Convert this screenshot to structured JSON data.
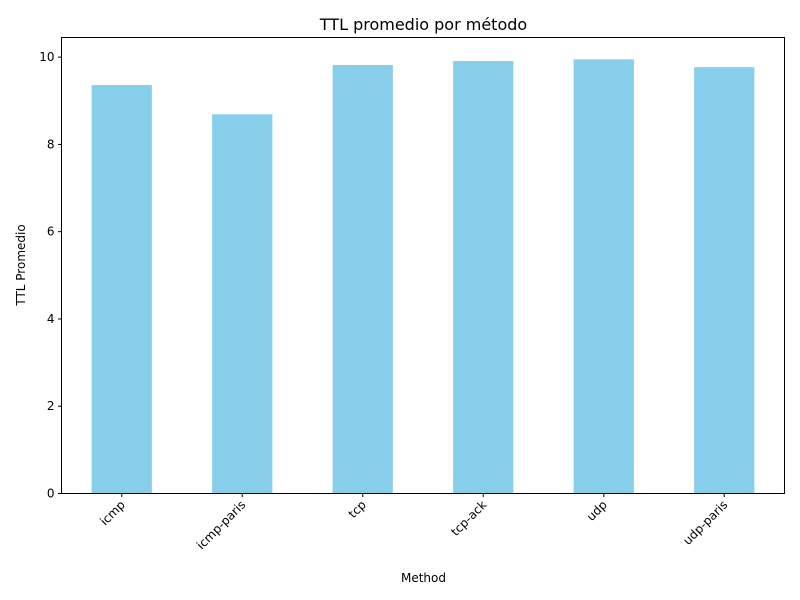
{
  "chart_data": {
    "type": "bar",
    "title": "TTL promedio por método",
    "xlabel": "Method",
    "ylabel": "TTL Promedio",
    "categories": [
      "icmp",
      "icmp-paris",
      "tcp",
      "tcp-ack",
      "udp",
      "udp-paris"
    ],
    "values": [
      9.36,
      8.69,
      9.82,
      9.91,
      9.95,
      9.77
    ],
    "ylim": [
      0,
      10.45
    ],
    "yticks": [
      0,
      2,
      4,
      6,
      8,
      10
    ],
    "bar_color": "#87ceeb",
    "grid": false,
    "x_tick_rotation": "45 degrees",
    "legend": "none"
  }
}
